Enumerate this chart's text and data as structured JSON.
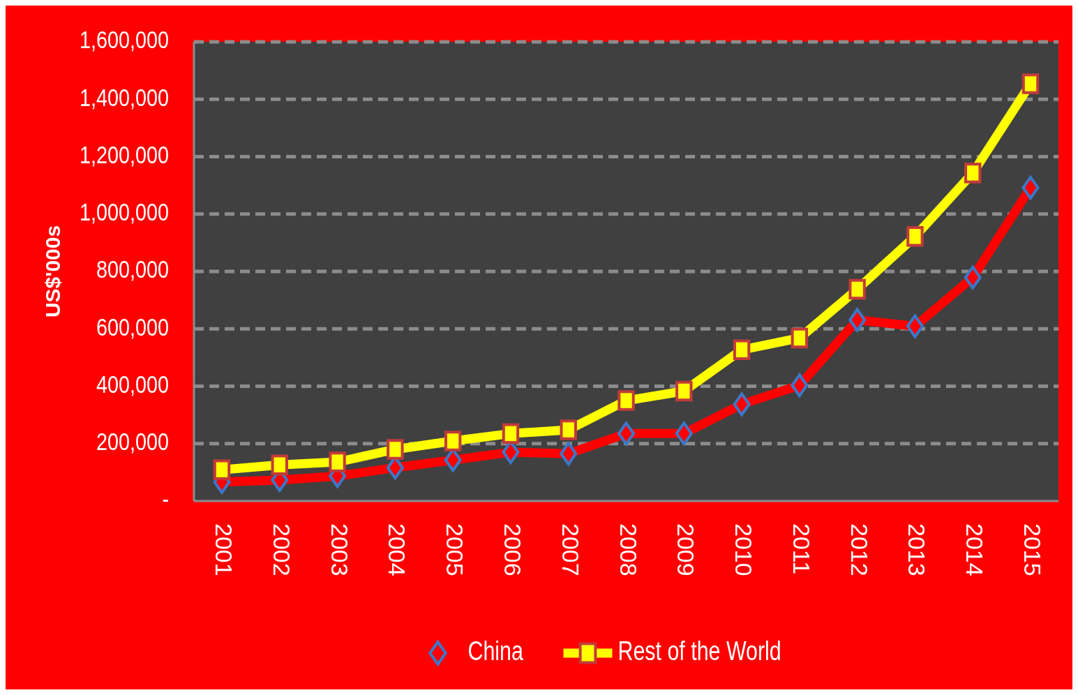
{
  "chart_data": {
    "type": "line",
    "ylabel": "US$'000s",
    "categories": [
      "2001",
      "2002",
      "2003",
      "2004",
      "2005",
      "2006",
      "2007",
      "2008",
      "2009",
      "2010",
      "2011",
      "2012",
      "2013",
      "2014",
      "2015"
    ],
    "series": [
      {
        "name": "China",
        "color": "#ff0000",
        "marker": "diamond",
        "values": [
          66000,
          73000,
          87000,
          116000,
          143000,
          170000,
          165000,
          235000,
          235000,
          337000,
          403000,
          631000,
          609000,
          779000,
          1092000
        ]
      },
      {
        "name": "Rest of the World",
        "color": "#ffff00",
        "marker": "square",
        "values": [
          109000,
          126000,
          136000,
          180000,
          209000,
          235000,
          248000,
          350000,
          383000,
          527000,
          568000,
          738000,
          922000,
          1143000,
          1454000
        ]
      }
    ],
    "ylim": [
      0,
      1600000
    ],
    "yticks": [
      {
        "value": 0,
        "label": "-"
      },
      {
        "value": 200000,
        "label": "200,000"
      },
      {
        "value": 400000,
        "label": "400,000"
      },
      {
        "value": 600000,
        "label": "600,000"
      },
      {
        "value": 800000,
        "label": "800,000"
      },
      {
        "value": 1000000,
        "label": "1,000,000"
      },
      {
        "value": 1200000,
        "label": "1,200,000"
      },
      {
        "value": 1400000,
        "label": "1,400,000"
      },
      {
        "value": 1600000,
        "label": "1,600,000"
      }
    ],
    "grid": "y",
    "legend": "bottom",
    "line_style": "solid"
  }
}
